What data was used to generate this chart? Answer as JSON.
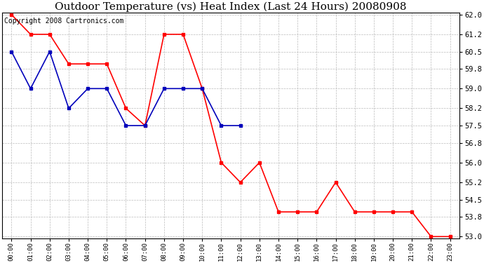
{
  "title": "Outdoor Temperature (vs) Heat Index (Last 24 Hours) 20080908",
  "copyright_text": "Copyright 2008 Cartronics.com",
  "hours": [
    "00:00",
    "01:00",
    "02:00",
    "03:00",
    "04:00",
    "05:00",
    "06:00",
    "07:00",
    "08:00",
    "09:00",
    "10:00",
    "11:00",
    "12:00",
    "13:00",
    "14:00",
    "15:00",
    "16:00",
    "17:00",
    "18:00",
    "19:00",
    "20:00",
    "21:00",
    "22:00",
    "23:00"
  ],
  "heat_index": [
    62.0,
    61.2,
    61.2,
    60.0,
    60.0,
    60.0,
    58.2,
    57.5,
    61.2,
    61.2,
    59.0,
    56.0,
    55.2,
    56.0,
    54.0,
    54.0,
    54.0,
    55.2,
    54.0,
    54.0,
    54.0,
    54.0,
    53.0,
    53.0
  ],
  "outdoor_temp": [
    60.5,
    59.0,
    60.5,
    58.2,
    59.0,
    59.0,
    57.5,
    57.5,
    59.0,
    59.0,
    59.0,
    57.5,
    57.5,
    null,
    null,
    null,
    null,
    null,
    null,
    null,
    null,
    null,
    null,
    null
  ],
  "red_color": "#ff0000",
  "blue_color": "#0000bb",
  "bg_color": "#ffffff",
  "grid_color": "#bbbbbb",
  "ylim_min": 52.93,
  "ylim_max": 62.07,
  "yticks": [
    53.0,
    53.8,
    54.5,
    55.2,
    56.0,
    56.8,
    57.5,
    58.2,
    59.0,
    59.8,
    60.5,
    61.2,
    62.0
  ],
  "title_fontsize": 11,
  "copyright_fontsize": 7,
  "tick_fontsize": 7.5,
  "xtick_fontsize": 6.5
}
